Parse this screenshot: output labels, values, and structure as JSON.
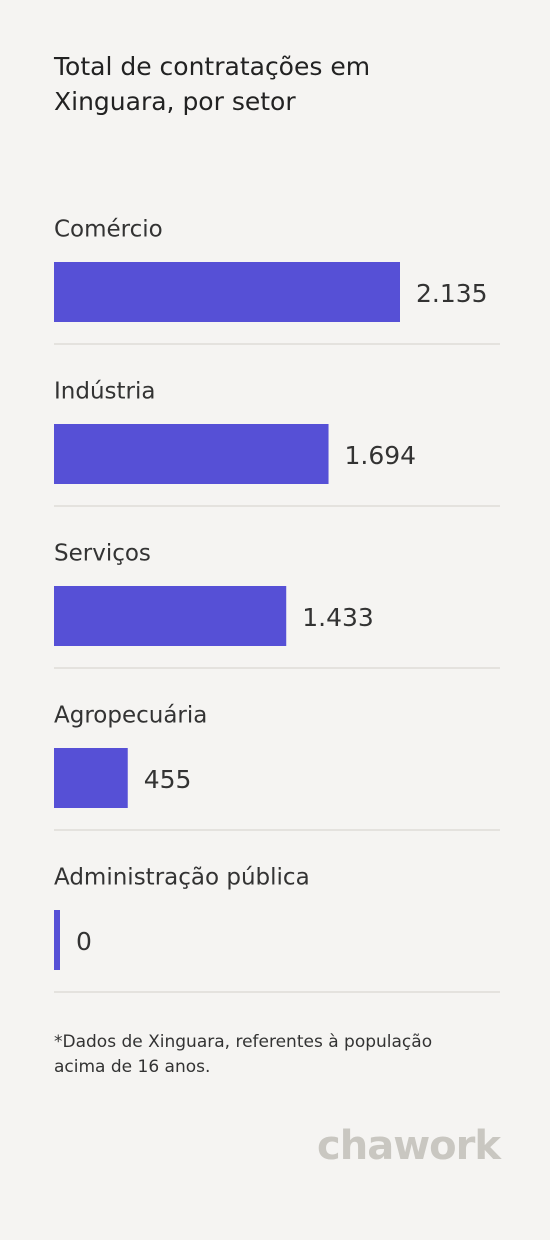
{
  "chart_data": {
    "type": "bar",
    "orientation": "horizontal",
    "title_lines": [
      "Total de contratações em",
      "Xinguara, por setor"
    ],
    "categories": [
      "Comércio",
      "Indústria",
      "Serviços",
      "Agropecuária",
      "Administração pública"
    ],
    "values": [
      2135,
      1694,
      1433,
      455,
      0
    ],
    "value_labels": [
      "2.135",
      "1.694",
      "1.433",
      "455",
      "0"
    ],
    "color": "#5650d6",
    "footnote_lines": [
      "*Dados de Xinguara, referentes à população",
      "acima de 16 anos."
    ],
    "logo": "chawork"
  }
}
